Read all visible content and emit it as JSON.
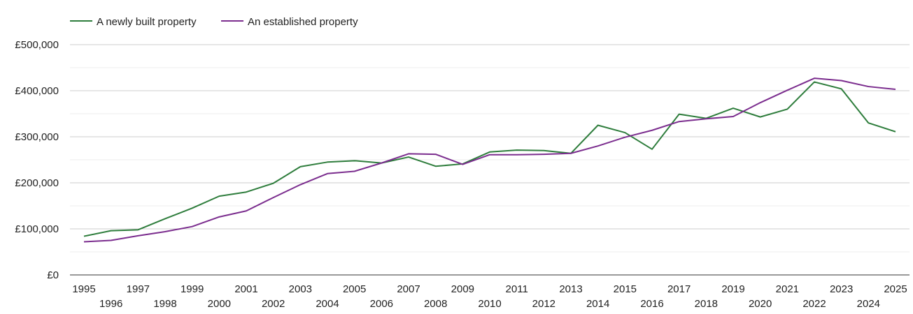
{
  "chart_data": {
    "type": "line",
    "title": "",
    "xlabel": "",
    "ylabel": "",
    "ylim": [
      0,
      500000
    ],
    "y_ticks": [
      0,
      100000,
      200000,
      300000,
      400000,
      500000
    ],
    "y_tick_labels": [
      "£0",
      "£100,000",
      "£200,000",
      "£300,000",
      "£400,000",
      "£500,000"
    ],
    "x": [
      "1995",
      "1996",
      "1997",
      "1998",
      "1999",
      "2000",
      "2001",
      "2002",
      "2003",
      "2004",
      "2005",
      "2006",
      "2007",
      "2008",
      "2009",
      "2010",
      "2011",
      "2012",
      "2013",
      "2014",
      "2015",
      "2016",
      "2017",
      "2018",
      "2019",
      "2020",
      "2021",
      "2022",
      "2023",
      "2024",
      "2025"
    ],
    "legend_position": "top-left",
    "grid": true,
    "series": [
      {
        "name": "A newly built property",
        "color": "#2e7d3c",
        "values": [
          84000,
          96000,
          98000,
          122000,
          145000,
          171000,
          180000,
          199000,
          235000,
          245000,
          248000,
          243000,
          256000,
          236000,
          241000,
          267000,
          271000,
          270000,
          264000,
          325000,
          309000,
          273000,
          349000,
          340000,
          362000,
          343000,
          360000,
          419000,
          404000,
          330000,
          311000
        ]
      },
      {
        "name": "An established property",
        "color": "#7b2d8e",
        "values": [
          72000,
          75000,
          85000,
          94000,
          105000,
          126000,
          139000,
          168000,
          196000,
          220000,
          225000,
          243000,
          263000,
          262000,
          240000,
          261000,
          261000,
          262000,
          264000,
          280000,
          299000,
          314000,
          333000,
          339000,
          344000,
          374000,
          401000,
          427000,
          422000,
          409000,
          403000
        ]
      }
    ]
  }
}
